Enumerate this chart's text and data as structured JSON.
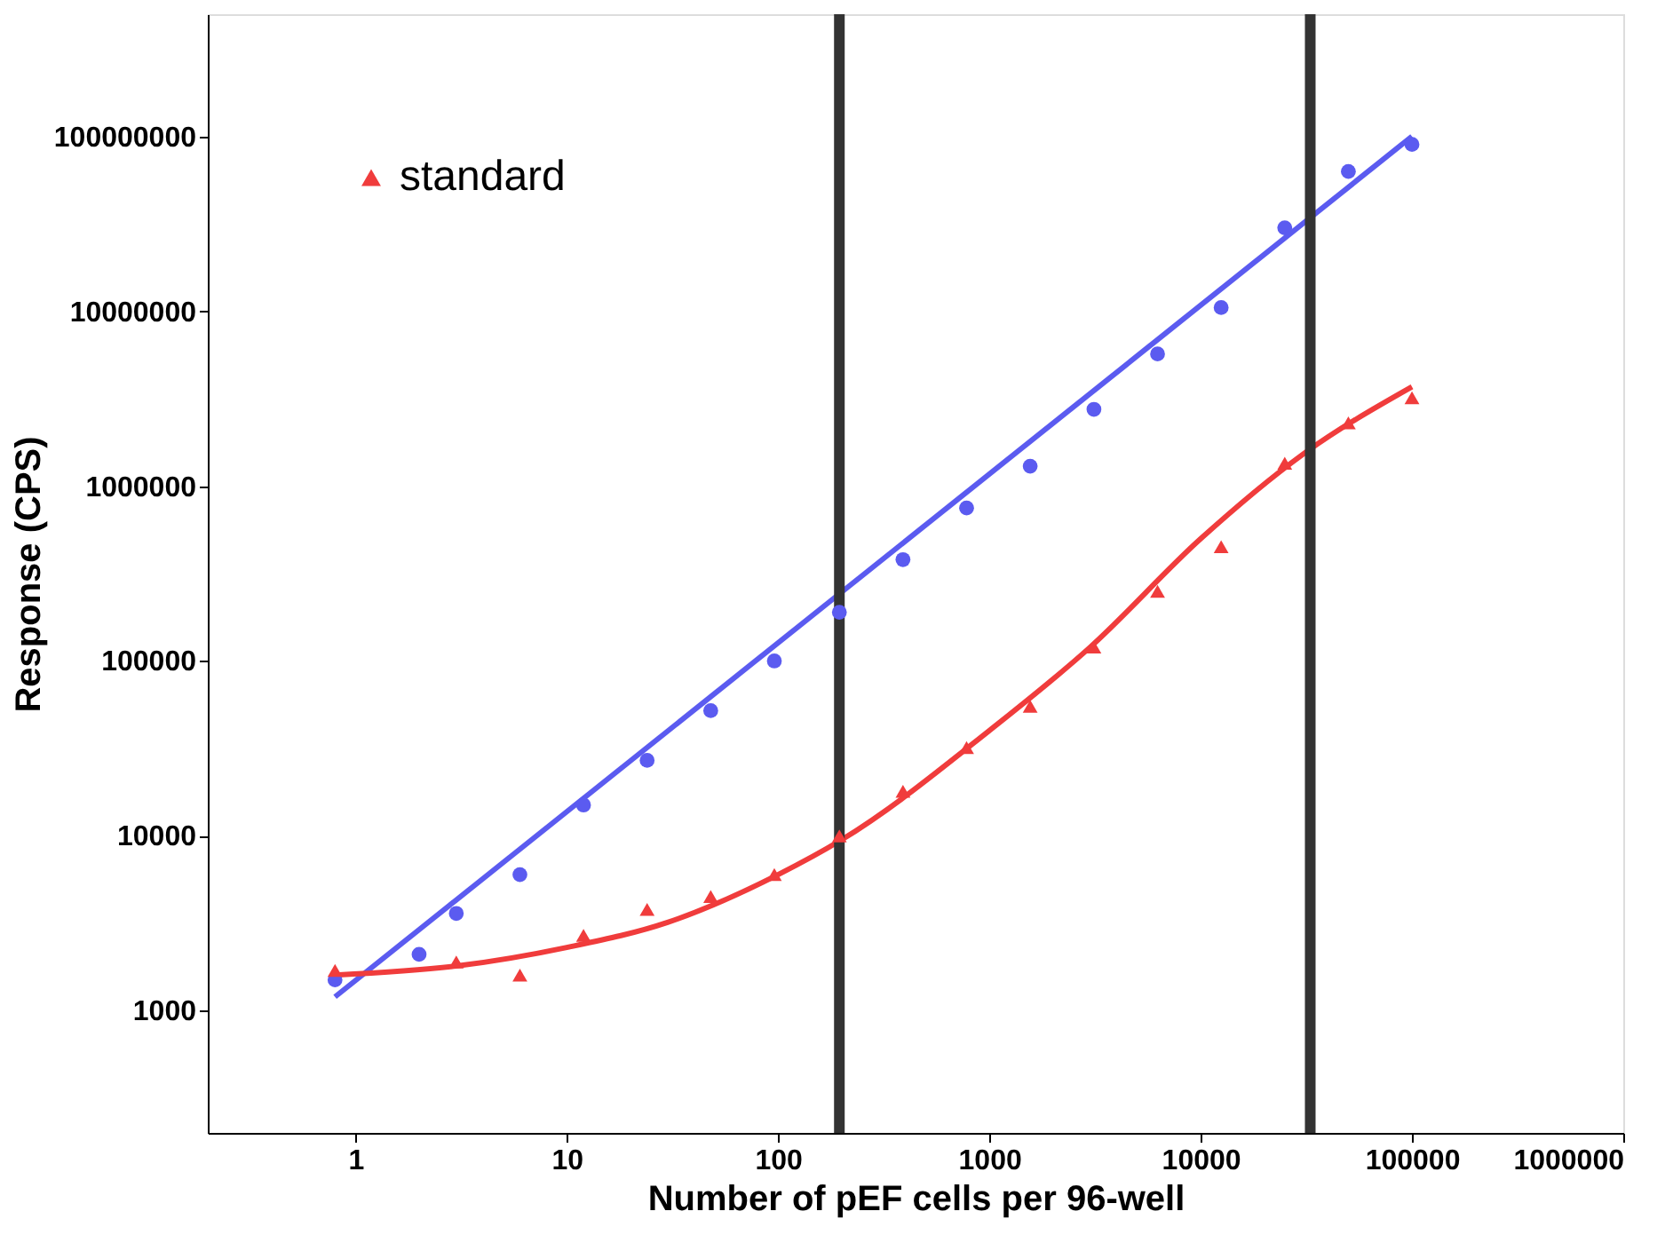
{
  "chart_data": {
    "type": "scatter",
    "xlabel": "Number of pEF cells per 96-well",
    "ylabel": "Response (CPS)",
    "x": [
      0.8,
      2,
      3,
      6,
      12,
      24,
      48,
      96,
      195,
      390,
      780,
      1560,
      3125,
      6250,
      12500,
      25000,
      50000,
      100000
    ],
    "series": [
      {
        "color": "#5b5bf0",
        "marker": "circle",
        "values": [
          1500,
          2100,
          3600,
          6000,
          15000,
          27000,
          52000,
          100000,
          190000,
          380000,
          750000,
          1300000,
          2750000,
          5700000,
          10500000,
          30000000,
          63000000,
          90000000
        ]
      },
      {
        "name": "standard",
        "color": "#f03c3c",
        "marker": "triangle",
        "values": [
          1700,
          null,
          1900,
          1600,
          2700,
          3800,
          4500,
          6000,
          10000,
          18000,
          32000,
          55000,
          120000,
          250000,
          450000,
          1350000,
          2300000,
          3200000
        ]
      },
      {
        "type": "line",
        "color": "#5b5bf0",
        "x": [
          0.8,
          100000
        ],
        "values": [
          1200,
          100000000
        ]
      },
      {
        "type": "line",
        "color": "#f03c3c",
        "x": [
          0.8,
          3,
          10,
          30,
          100,
          200,
          1000,
          3000,
          10000,
          30000,
          100000
        ],
        "values": [
          1600,
          1800,
          2300,
          3200,
          6000,
          9500,
          40000,
          120000,
          500000,
          1500000,
          3700000
        ]
      }
    ],
    "log": "xy",
    "xlim": [
      0.2,
      1000000
    ],
    "ylim": [
      200,
      500000000
    ],
    "xticks": [
      1,
      10,
      100,
      1000,
      10000,
      100000,
      1000000
    ],
    "yticks": [
      1000,
      10000,
      100000,
      1000000,
      10000000,
      100000000
    ],
    "ref_lines": [
      {
        "axis": "x",
        "value": 195,
        "color": "#333333"
      },
      {
        "axis": "x",
        "value": 33000,
        "color": "#333333"
      }
    ],
    "grid": false,
    "legend": "top left"
  }
}
